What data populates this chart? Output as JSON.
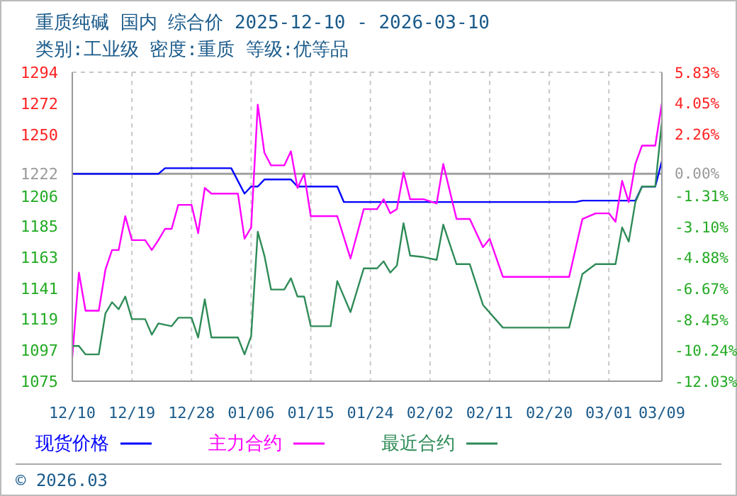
{
  "chart_data": {
    "type": "line",
    "title": "重质纯碱 国内 综合价 2025-12-10 - 2026-03-10",
    "subtitle": "类别:工业级 密度:重质 等级:优等品",
    "xlim": [
      "2025-12-10",
      "2026-03-09"
    ],
    "xticks": [
      {
        "value": "2025-12-10",
        "label": "12/10"
      },
      {
        "value": "2025-12-19",
        "label": "12/19"
      },
      {
        "value": "2025-12-28",
        "label": "12/28"
      },
      {
        "value": "2026-01-06",
        "label": "01/06"
      },
      {
        "value": "2026-01-15",
        "label": "01/15"
      },
      {
        "value": "2026-01-24",
        "label": "01/24"
      },
      {
        "value": "2026-02-02",
        "label": "02/02"
      },
      {
        "value": "2026-02-11",
        "label": "02/11"
      },
      {
        "value": "2026-02-20",
        "label": "02/20"
      },
      {
        "value": "2026-03-01",
        "label": "03/01"
      },
      {
        "value": "2026-03-09",
        "label": "03/09"
      }
    ],
    "ylim": [
      1075,
      1294
    ],
    "yticks": [
      1075,
      1097,
      1119,
      1141,
      1163,
      1185,
      1206,
      1222,
      1250,
      1272,
      1294
    ],
    "y2lim": [
      -12.03,
      5.83
    ],
    "y2ticks": [
      {
        "value": -12.03,
        "label": "-12.03%"
      },
      {
        "value": -10.24,
        "label": "-10.24%"
      },
      {
        "value": -8.45,
        "label": "-8.45%"
      },
      {
        "value": -6.67,
        "label": "-6.67%"
      },
      {
        "value": -4.88,
        "label": "-4.88%"
      },
      {
        "value": -3.1,
        "label": "-3.10%"
      },
      {
        "value": -1.31,
        "label": "-1.31%"
      },
      {
        "value": 0,
        "label": "0.00%"
      },
      {
        "value": 2.26,
        "label": "2.26%"
      },
      {
        "value": 4.05,
        "label": "4.05%"
      },
      {
        "value": 5.83,
        "label": "5.83%"
      }
    ],
    "ref_lines": [
      {
        "axis": "y",
        "value": 1222,
        "label": null,
        "color": "#a0a0a0"
      }
    ],
    "grid": true,
    "legend": "bottom",
    "line_style": "solid",
    "marker": "none",
    "annotations": [
      "© 2026.03"
    ],
    "series": [
      {
        "name": "现货价格",
        "color": "#0000ff",
        "x": [
          "2025-12-10",
          "2025-12-23",
          "2025-12-24",
          "2026-01-03",
          "2026-01-05",
          "2026-01-06",
          "2026-01-07",
          "2026-01-08",
          "2026-01-12",
          "2026-01-13",
          "2026-01-19",
          "2026-01-20",
          "2026-02-24",
          "2026-02-25",
          "2026-03-05",
          "2026-03-06",
          "2026-03-08",
          "2026-03-09"
        ],
        "values": [
          1222,
          1222,
          1226,
          1226,
          1208,
          1213,
          1213,
          1218,
          1218,
          1213,
          1213,
          1202,
          1202,
          1203,
          1203,
          1213,
          1213,
          1231
        ]
      },
      {
        "name": "主力合约",
        "color": "#ff00ff",
        "x": [
          "2025-12-10",
          "2025-12-11",
          "2025-12-12",
          "2025-12-14",
          "2025-12-15",
          "2025-12-16",
          "2025-12-17",
          "2025-12-18",
          "2025-12-19",
          "2025-12-21",
          "2025-12-22",
          "2025-12-23",
          "2025-12-24",
          "2025-12-25",
          "2025-12-26",
          "2025-12-28",
          "2025-12-29",
          "2025-12-30",
          "2025-12-31",
          "2026-01-04",
          "2026-01-05",
          "2026-01-06",
          "2026-01-07",
          "2026-01-08",
          "2026-01-09",
          "2026-01-11",
          "2026-01-12",
          "2026-01-13",
          "2026-01-14",
          "2026-01-15",
          "2026-01-19",
          "2026-01-21",
          "2026-01-23",
          "2026-01-25",
          "2026-01-26",
          "2026-01-27",
          "2026-01-28",
          "2026-01-29",
          "2026-01-30",
          "2026-02-01",
          "2026-02-03",
          "2026-02-04",
          "2026-02-06",
          "2026-02-08",
          "2026-02-10",
          "2026-02-11",
          "2026-02-13",
          "2026-02-23",
          "2026-02-25",
          "2026-02-27",
          "2026-03-01",
          "2026-03-02",
          "2026-03-03",
          "2026-03-04",
          "2026-03-05",
          "2026-03-06",
          "2026-03-08",
          "2026-03-09"
        ],
        "values": [
          1092,
          1152,
          1125,
          1125,
          1154,
          1168,
          1168,
          1192,
          1175,
          1175,
          1168,
          1175,
          1183,
          1183,
          1200,
          1200,
          1180,
          1212,
          1208,
          1208,
          1176,
          1184,
          1271,
          1237,
          1228,
          1228,
          1238,
          1212,
          1222,
          1192,
          1192,
          1162,
          1197,
          1197,
          1204,
          1194,
          1197,
          1223,
          1204,
          1204,
          1201,
          1229,
          1190,
          1190,
          1170,
          1176,
          1149,
          1149,
          1190,
          1194,
          1194,
          1188,
          1217,
          1202,
          1229,
          1242,
          1242,
          1272
        ]
      },
      {
        "name": "最近合约",
        "color": "#2e8b57",
        "x": [
          "2025-12-10",
          "2025-12-11",
          "2025-12-12",
          "2025-12-14",
          "2025-12-15",
          "2025-12-16",
          "2025-12-17",
          "2025-12-18",
          "2025-12-19",
          "2025-12-21",
          "2025-12-22",
          "2025-12-23",
          "2025-12-25",
          "2025-12-26",
          "2025-12-28",
          "2025-12-29",
          "2025-12-30",
          "2025-12-31",
          "2026-01-04",
          "2026-01-05",
          "2026-01-06",
          "2026-01-07",
          "2026-01-08",
          "2026-01-09",
          "2026-01-11",
          "2026-01-12",
          "2026-01-13",
          "2026-01-14",
          "2026-01-15",
          "2026-01-18",
          "2026-01-19",
          "2026-01-21",
          "2026-01-23",
          "2026-01-25",
          "2026-01-26",
          "2026-01-27",
          "2026-01-28",
          "2026-01-29",
          "2026-01-30",
          "2026-02-01",
          "2026-02-03",
          "2026-02-04",
          "2026-02-06",
          "2026-02-08",
          "2026-02-10",
          "2026-02-13",
          "2026-02-23",
          "2026-02-25",
          "2026-02-27",
          "2026-03-02",
          "2026-03-03",
          "2026-03-04",
          "2026-03-05",
          "2026-03-06",
          "2026-03-08",
          "2026-03-09"
        ],
        "values": [
          1100,
          1100,
          1094,
          1094,
          1123,
          1131,
          1126,
          1135,
          1119,
          1119,
          1108,
          1116,
          1114,
          1120,
          1120,
          1106,
          1133,
          1106,
          1106,
          1094,
          1107,
          1181,
          1164,
          1140,
          1140,
          1148,
          1135,
          1135,
          1114,
          1114,
          1146,
          1124,
          1155,
          1155,
          1160,
          1152,
          1157,
          1187,
          1164,
          1163,
          1161,
          1186,
          1158,
          1158,
          1129,
          1113,
          1113,
          1151,
          1158,
          1158,
          1184,
          1174,
          1202,
          1213,
          1213,
          1259
        ]
      }
    ]
  }
}
